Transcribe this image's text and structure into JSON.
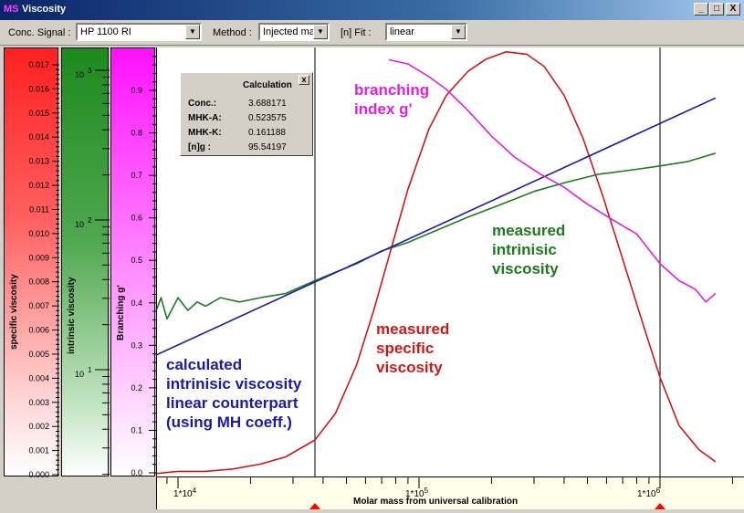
{
  "window": {
    "logo": "MS",
    "title": "Viscosity",
    "buttons": {
      "minimize": "_",
      "maximize": "□",
      "close": "X"
    }
  },
  "toolbar": {
    "conc_signal_label": "Conc. Signal :",
    "conc_signal_value": "HP 1100 RI",
    "method_label": "Method :",
    "method_value": "Injected mas",
    "fit_label": "[n] Fit :",
    "fit_value": "linear"
  },
  "scales": {
    "specific": {
      "label": "specific viscosity",
      "color": "#ff2020",
      "ticks": [
        "0.017",
        "0.016",
        "0.015",
        "0.014",
        "0.013",
        "0.012",
        "0.011",
        "0.010",
        "0.009",
        "0.008",
        "0.007",
        "0.006",
        "0.005",
        "0.004",
        "0.003",
        "0.002",
        "0.001",
        "0.000"
      ]
    },
    "intrinsic": {
      "label": "intrinsic viscosity",
      "color": "#1d8a1d",
      "ticks": [
        {
          "base": "10",
          "exp": "3"
        },
        {
          "base": "10",
          "exp": "2"
        },
        {
          "base": "10",
          "exp": "1"
        }
      ]
    },
    "branching": {
      "label": "Branching g'",
      "color": "#ff10ff",
      "ticks": [
        "0.9",
        "0.8",
        "0.7",
        "0.6",
        "0.5",
        "0.4",
        "0.3",
        "0.2",
        "0.1",
        "0.0"
      ]
    }
  },
  "calc_box": {
    "title": "Calculation",
    "close": "x",
    "rows": [
      {
        "key": "Conc.:",
        "value": "3.688171"
      },
      {
        "key": "MHK-A:",
        "value": "0.523575"
      },
      {
        "key": "MHK-K:",
        "value": "0.161188"
      },
      {
        "key": "[n]g  :",
        "value": "95.54197"
      }
    ]
  },
  "annotations": {
    "branching": [
      "branching",
      "index g'"
    ],
    "measured_intrinsic": [
      "measured",
      "intrinisic",
      "viscosity"
    ],
    "measured_specific": [
      "measured",
      "specific",
      "viscosity"
    ],
    "calculated": [
      "calculated",
      "intrinisic viscosity",
      "linear counterpart",
      "(using MH coeff.)"
    ]
  },
  "x_axis": {
    "label": "Molar mass from universal calibration",
    "ticks": [
      {
        "base": "1*10",
        "exp": "4"
      },
      {
        "base": "1*10",
        "exp": "5"
      },
      {
        "base": "1*10",
        "exp": "6"
      }
    ]
  },
  "colors": {
    "specific": "#cc1a1a",
    "intrinsic": "#1f7a1f",
    "calculated": "#1a1aaa",
    "branching": "#e020e0",
    "marker": "#ff0000"
  },
  "chart_data": {
    "type": "line",
    "x_scale": "log",
    "x_range": [
      6500,
      1700000
    ],
    "cursor_x": [
      37000,
      1000000
    ],
    "series": [
      {
        "name": "measured specific viscosity",
        "axis": "specific",
        "x": [
          6500,
          8000,
          10000,
          13000,
          17000,
          22000,
          28000,
          37000,
          45000,
          55000,
          65000,
          75000,
          90000,
          110000,
          130000,
          160000,
          190000,
          230000,
          280000,
          330000,
          400000,
          480000,
          580000,
          700000,
          850000,
          1000000,
          1200000,
          1450000,
          1700000
        ],
        "y": [
          0.0,
          0.0,
          0.0001,
          0.0001,
          0.0002,
          0.0004,
          0.0007,
          0.0014,
          0.0025,
          0.0045,
          0.0068,
          0.009,
          0.0118,
          0.0143,
          0.0157,
          0.0167,
          0.0172,
          0.0175,
          0.0174,
          0.0169,
          0.0157,
          0.0139,
          0.0115,
          0.0089,
          0.0062,
          0.004,
          0.002,
          0.001,
          0.0005
        ]
      },
      {
        "name": "measured intrinisic viscosity",
        "axis": "branching",
        "x": [
          6500,
          7000,
          7500,
          8000,
          8500,
          9000,
          10000,
          11000,
          12000,
          13000,
          15000,
          18000,
          22000,
          28000,
          37000,
          45000,
          55000,
          70000,
          90000,
          120000,
          160000,
          220000,
          300000,
          400000,
          550000,
          750000,
          1000000,
          1300000,
          1700000
        ],
        "y": [
          0.41,
          0.35,
          0.4,
          0.37,
          0.41,
          0.36,
          0.41,
          0.38,
          0.4,
          0.39,
          0.41,
          0.4,
          0.41,
          0.42,
          0.45,
          0.47,
          0.49,
          0.52,
          0.54,
          0.57,
          0.6,
          0.63,
          0.66,
          0.68,
          0.7,
          0.71,
          0.72,
          0.73,
          0.75
        ]
      },
      {
        "name": "calculated intrinisic viscosity linear counterpart",
        "axis": "branching",
        "x": [
          6500,
          1700000
        ],
        "y": [
          0.25,
          0.88
        ]
      },
      {
        "name": "branching index g'",
        "axis": "branching",
        "x": [
          75000,
          90000,
          110000,
          130000,
          160000,
          200000,
          250000,
          320000,
          400000,
          500000,
          650000,
          800000,
          1000000,
          1200000,
          1400000,
          1550000,
          1700000
        ],
        "y": [
          0.97,
          0.96,
          0.93,
          0.9,
          0.85,
          0.79,
          0.74,
          0.7,
          0.67,
          0.63,
          0.59,
          0.56,
          0.49,
          0.45,
          0.43,
          0.4,
          0.42
        ]
      }
    ]
  }
}
